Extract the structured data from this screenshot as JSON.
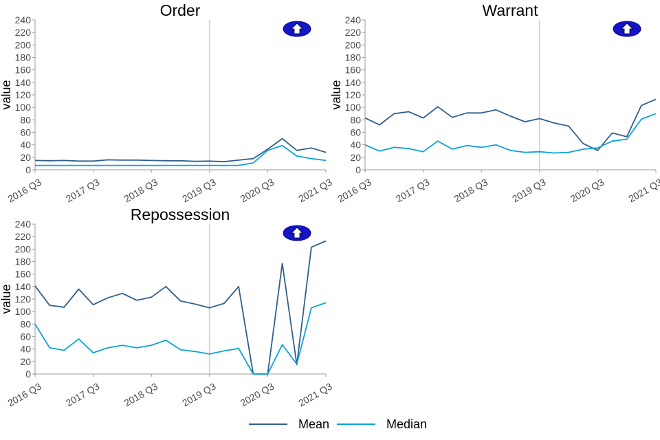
{
  "chart_data": [
    {
      "type": "line",
      "title": "Order",
      "ylabel": "value",
      "ylim": [
        0,
        240
      ],
      "yticks": [
        0,
        20,
        40,
        60,
        80,
        100,
        120,
        140,
        160,
        180,
        200,
        220,
        240
      ],
      "xtick_labels": [
        "2016 Q3",
        "2017 Q3",
        "2018 Q3",
        "2019 Q3",
        "2020 Q3",
        "2021 Q3"
      ],
      "x": [
        "2016 Q3",
        "2016 Q4",
        "2017 Q1",
        "2017 Q2",
        "2017 Q3",
        "2017 Q4",
        "2018 Q1",
        "2018 Q2",
        "2018 Q3",
        "2018 Q4",
        "2019 Q1",
        "2019 Q2",
        "2019 Q3",
        "2019 Q4",
        "2020 Q1",
        "2020 Q2",
        "2020 Q3",
        "2020 Q4",
        "2021 Q1",
        "2021 Q2",
        "2021 Q3"
      ],
      "vline_at": "2019 Q3",
      "arrow_icon": "up-arrow-icon",
      "series": [
        {
          "name": "Mean",
          "values": [
            15,
            14.5,
            15,
            14,
            14,
            16,
            15.5,
            15.5,
            15,
            14.5,
            14.5,
            13.5,
            14,
            13,
            15.5,
            18,
            33,
            50,
            31,
            35,
            28
          ]
        },
        {
          "name": "Median",
          "values": [
            7,
            7,
            7,
            7,
            7,
            7,
            7,
            7,
            7,
            7,
            7,
            7,
            7,
            7,
            7,
            11,
            31,
            39,
            22,
            18,
            15
          ]
        }
      ]
    },
    {
      "type": "line",
      "title": "Warrant",
      "ylabel": "value",
      "ylim": [
        0,
        240
      ],
      "yticks": [
        0,
        20,
        40,
        60,
        80,
        100,
        120,
        140,
        160,
        180,
        200,
        220,
        240
      ],
      "xtick_labels": [
        "2016 Q3",
        "2017 Q3",
        "2018 Q3",
        "2019 Q3",
        "2020 Q3",
        "2021 Q3"
      ],
      "x": [
        "2016 Q3",
        "2016 Q4",
        "2017 Q1",
        "2017 Q2",
        "2017 Q3",
        "2017 Q4",
        "2018 Q1",
        "2018 Q2",
        "2018 Q3",
        "2018 Q4",
        "2019 Q1",
        "2019 Q2",
        "2019 Q3",
        "2019 Q4",
        "2020 Q1",
        "2020 Q2",
        "2020 Q3",
        "2020 Q4",
        "2021 Q1",
        "2021 Q2",
        "2021 Q3"
      ],
      "vline_at": "2019 Q3",
      "arrow_icon": "up-arrow-icon",
      "series": [
        {
          "name": "Mean",
          "values": [
            83,
            72,
            90,
            93,
            83,
            101,
            84,
            91,
            91,
            96,
            86,
            77,
            82,
            75,
            70,
            42,
            31,
            59,
            53,
            103,
            113
          ]
        },
        {
          "name": "Median",
          "values": [
            40,
            30,
            36,
            34,
            29,
            46,
            33,
            39,
            36,
            40,
            31,
            28,
            29,
            27,
            28,
            33,
            35,
            46,
            49,
            81,
            90
          ]
        }
      ]
    },
    {
      "type": "line",
      "title": "Repossession",
      "ylabel": "value",
      "ylim": [
        0,
        240
      ],
      "yticks": [
        0,
        20,
        40,
        60,
        80,
        100,
        120,
        140,
        160,
        180,
        200,
        220,
        240
      ],
      "xtick_labels": [
        "2016 Q3",
        "2017 Q3",
        "2018 Q3",
        "2019 Q3",
        "2020 Q3",
        "2021 Q3"
      ],
      "x": [
        "2016 Q3",
        "2016 Q4",
        "2017 Q1",
        "2017 Q2",
        "2017 Q3",
        "2017 Q4",
        "2018 Q1",
        "2018 Q2",
        "2018 Q3",
        "2018 Q4",
        "2019 Q1",
        "2019 Q2",
        "2019 Q3",
        "2019 Q4",
        "2020 Q1",
        "2020 Q2",
        "2020 Q3",
        "2020 Q4",
        "2021 Q1",
        "2021 Q2",
        "2021 Q3"
      ],
      "vline_at": "2019 Q3",
      "arrow_icon": "up-arrow-icon",
      "series": [
        {
          "name": "Mean",
          "values": [
            141,
            110,
            107,
            136,
            111,
            122,
            129,
            118,
            123,
            140,
            117,
            112,
            106,
            113,
            140,
            0,
            0,
            177,
            15,
            203,
            213
          ]
        },
        {
          "name": "Median",
          "values": [
            80,
            42,
            38,
            56,
            34,
            42,
            46,
            42,
            46,
            54,
            39,
            36,
            32,
            37,
            41,
            0,
            0,
            47,
            16,
            106,
            114
          ]
        }
      ]
    }
  ],
  "legend": {
    "position": "bottom",
    "items": [
      {
        "label": "Mean",
        "color": "#2f5f8c"
      },
      {
        "label": "Median",
        "color": "#0aa3d6"
      }
    ]
  },
  "colors": {
    "mean": "#2f5f8c",
    "median": "#0aa3d6",
    "arrow_fill": "#1414c8"
  }
}
